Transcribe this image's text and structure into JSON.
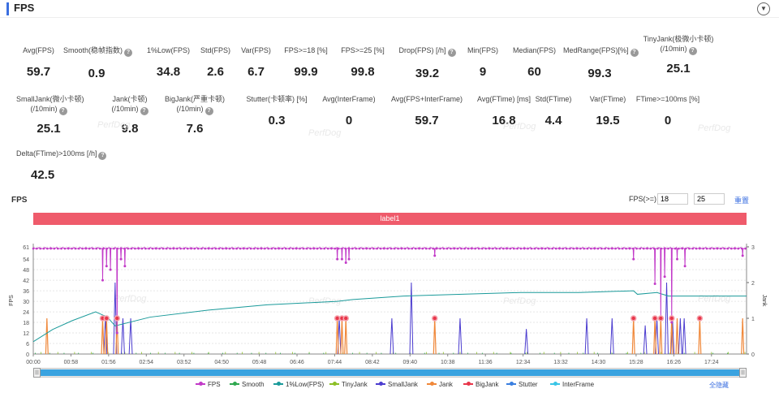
{
  "section": {
    "title": "FPS"
  },
  "stats": [
    {
      "label": "Avg(FPS)",
      "value": "59.7"
    },
    {
      "label": "Smooth(稳帧指数)",
      "value": "0.9"
    },
    {
      "label": "1%Low(FPS)",
      "value": "34.8"
    },
    {
      "label": "Std(FPS)",
      "value": "2.6"
    },
    {
      "label": "Var(FPS)",
      "value": "6.7"
    },
    {
      "label": "FPS>=18 [%]",
      "value": "99.9"
    },
    {
      "label": "FPS>=25 [%]",
      "value": "99.8"
    },
    {
      "label": "Drop(FPS) [/h]",
      "value": "39.2"
    },
    {
      "label": "Min(FPS)",
      "value": "9"
    },
    {
      "label": "Median(FPS)",
      "value": "60"
    },
    {
      "label": "MedRange(FPS)[%]",
      "value": "99.3"
    },
    {
      "label": "TinyJank(极微小卡顿)",
      "label2": "(/10min)",
      "value": "25.1"
    },
    {
      "label": "SmallJank(微小卡顿)",
      "label2": "(/10min)",
      "value": "25.1"
    },
    {
      "label": "Jank(卡顿)",
      "label2": "(/10min)",
      "value": "9.8"
    },
    {
      "label": "BigJank(严重卡顿)",
      "label2": "(/10min)",
      "value": "7.6"
    },
    {
      "label": "Stutter(卡顿率) [%]",
      "value": "0.3"
    },
    {
      "label": "Avg(InterFrame)",
      "value": "0"
    },
    {
      "label": "Avg(FPS+InterFrame)",
      "value": "59.7"
    },
    {
      "label": "Avg(FTime) [ms]",
      "value": "16.8"
    },
    {
      "label": "Std(FTime)",
      "value": "4.4"
    },
    {
      "label": "Var(FTime)",
      "value": "19.5"
    },
    {
      "label": "FTime>=100ms [%]",
      "value": "0"
    },
    {
      "label": "Delta(FTime)>100ms [/h]",
      "value": "42.5"
    }
  ],
  "chart": {
    "title": "FPS",
    "fps_filter_label": "FPS(>=)",
    "fps_filter_1": "18",
    "fps_filter_2": "25",
    "reset_label": "重置",
    "band_label": "label1",
    "watermark": "PerfDog",
    "hide_all_label": "全隐藏",
    "scroll_left_glyph": "|||",
    "scroll_right_glyph": "|||"
  },
  "chart_data": {
    "type": "line",
    "title": "FPS",
    "ylabel": "FPS",
    "y2label": "Jank",
    "ylim": [
      0,
      61
    ],
    "y_ticks": [
      0,
      6,
      12,
      18,
      24,
      30,
      36,
      42,
      48,
      54,
      61
    ],
    "y2lim": [
      0,
      3
    ],
    "y2_ticks": [
      0,
      1,
      2,
      3
    ],
    "x_ticks": [
      "00:00",
      "00:58",
      "01:56",
      "02:54",
      "03:52",
      "04:50",
      "05:48",
      "06:46",
      "07:44",
      "08:42",
      "09:40",
      "10:38",
      "11:36",
      "12:34",
      "13:32",
      "14:30",
      "15:28",
      "16:26",
      "17:24"
    ],
    "x_end_min": 18.3,
    "series": [
      {
        "name": "FPS",
        "color": "#c23ac8",
        "baseline": 60,
        "dips": [
          [
            1.78,
            42
          ],
          [
            1.88,
            50
          ],
          [
            1.98,
            48
          ],
          [
            2.15,
            12
          ],
          [
            2.25,
            54
          ],
          [
            2.35,
            50
          ],
          [
            7.8,
            54
          ],
          [
            7.92,
            54
          ],
          [
            8.02,
            52
          ],
          [
            8.1,
            54
          ],
          [
            10.3,
            56
          ],
          [
            15.4,
            54
          ],
          [
            15.95,
            40
          ],
          [
            16.1,
            20
          ],
          [
            16.2,
            44
          ],
          [
            16.38,
            18
          ],
          [
            16.52,
            54
          ],
          [
            16.72,
            50
          ],
          [
            18.2,
            56
          ]
        ]
      },
      {
        "name": "Smooth",
        "color": "#2fa84f"
      },
      {
        "name": "1%Low(FPS)",
        "color": "#1a9a9a",
        "points": [
          [
            0,
            7
          ],
          [
            0.5,
            14
          ],
          [
            1.0,
            19
          ],
          [
            1.6,
            24
          ],
          [
            1.9,
            21
          ],
          [
            2.1,
            16
          ],
          [
            3.0,
            21
          ],
          [
            4.5,
            25
          ],
          [
            6.0,
            28
          ],
          [
            7.8,
            30
          ],
          [
            8.2,
            31
          ],
          [
            9.5,
            33
          ],
          [
            11.0,
            34
          ],
          [
            12.5,
            35
          ],
          [
            14.0,
            35
          ],
          [
            15.4,
            36
          ],
          [
            15.5,
            34
          ],
          [
            16.0,
            35
          ],
          [
            16.3,
            33
          ],
          [
            17.0,
            33
          ],
          [
            18.3,
            33
          ]
        ]
      },
      {
        "name": "TinyJank",
        "color": "#8cbf26"
      },
      {
        "name": "SmallJank",
        "color": "#4b3ccf",
        "spikes": [
          [
            1.85,
            1
          ],
          [
            2.1,
            2
          ],
          [
            2.3,
            1
          ],
          [
            2.5,
            1
          ],
          [
            7.85,
            1
          ],
          [
            9.2,
            1
          ],
          [
            9.7,
            2
          ],
          [
            10.95,
            1
          ],
          [
            12.65,
            0.7
          ],
          [
            14.2,
            1
          ],
          [
            14.85,
            1
          ],
          [
            15.7,
            0.8
          ],
          [
            16.0,
            1
          ],
          [
            16.25,
            2
          ],
          [
            16.4,
            1
          ],
          [
            16.6,
            1
          ],
          [
            16.7,
            1
          ]
        ]
      },
      {
        "name": "Jank",
        "color": "#f0883a",
        "spikes": [
          [
            0.35,
            1
          ],
          [
            1.78,
            1
          ],
          [
            1.88,
            1
          ],
          [
            2.15,
            1
          ],
          [
            7.8,
            1
          ],
          [
            7.92,
            1
          ],
          [
            8.02,
            1
          ],
          [
            10.3,
            1
          ],
          [
            15.4,
            1
          ],
          [
            15.95,
            1
          ],
          [
            16.1,
            1
          ],
          [
            16.38,
            1
          ],
          [
            16.52,
            1
          ],
          [
            17.1,
            1
          ],
          [
            18.2,
            1
          ]
        ]
      },
      {
        "name": "BigJank",
        "color": "#e8364a",
        "markers": [
          [
            1.78,
            1
          ],
          [
            1.88,
            1
          ],
          [
            2.15,
            1
          ],
          [
            7.8,
            1
          ],
          [
            7.92,
            1
          ],
          [
            8.02,
            1
          ],
          [
            10.3,
            1
          ],
          [
            15.4,
            1
          ],
          [
            15.95,
            1
          ],
          [
            16.1,
            1
          ],
          [
            16.38,
            1
          ],
          [
            17.1,
            1
          ]
        ]
      },
      {
        "name": "Stutter",
        "color": "#3a7fe0"
      },
      {
        "name": "InterFrame",
        "color": "#39c5e6"
      }
    ]
  }
}
